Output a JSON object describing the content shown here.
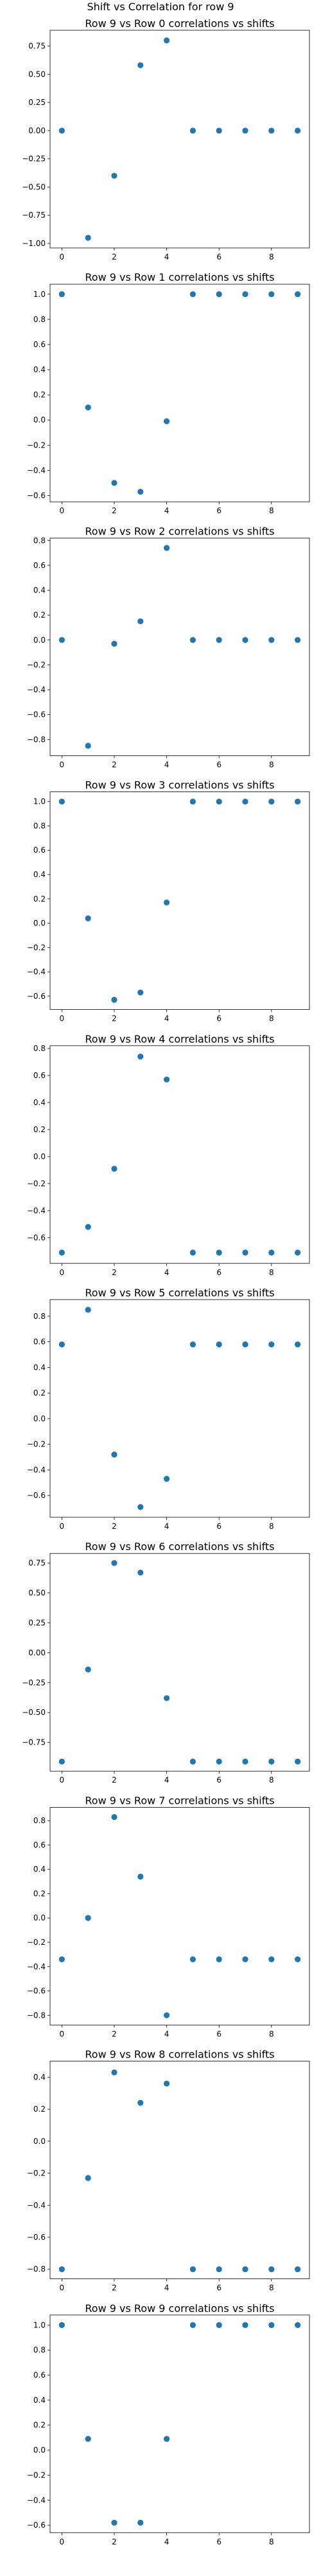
{
  "figure": {
    "suptitle": "Shift vs Correlation for row 9"
  },
  "marker_color": "#1f77b4",
  "chart_data": [
    {
      "type": "scatter",
      "title": "Row 9 vs Row 0 correlations vs shifts",
      "x": [
        0,
        1,
        2,
        3,
        4,
        5,
        6,
        7,
        8,
        9
      ],
      "y": [
        0.0,
        -0.95,
        -0.4,
        0.58,
        0.8,
        0.0,
        0.0,
        0.0,
        0.0,
        0.0
      ],
      "xlim": [
        -0.45,
        9.45
      ],
      "ylim": [
        -1.04,
        0.89
      ],
      "xticks": [
        0,
        2,
        4,
        6,
        8
      ],
      "yticks": [
        -1.0,
        -0.75,
        -0.5,
        -0.25,
        0.0,
        0.25,
        0.5,
        0.75
      ],
      "ytick_labels": [
        "−1.00",
        "−0.75",
        "−0.50",
        "−0.25",
        "0.00",
        "0.25",
        "0.50",
        "0.75"
      ]
    },
    {
      "type": "scatter",
      "title": "Row 9 vs Row 1 correlations vs shifts",
      "x": [
        0,
        1,
        2,
        3,
        4,
        5,
        6,
        7,
        8,
        9
      ],
      "y": [
        1.0,
        0.1,
        -0.5,
        -0.57,
        -0.01,
        1.0,
        1.0,
        1.0,
        1.0,
        1.0
      ],
      "xlim": [
        -0.45,
        9.45
      ],
      "ylim": [
        -0.65,
        1.08
      ],
      "xticks": [
        0,
        2,
        4,
        6,
        8
      ],
      "yticks": [
        -0.6,
        -0.4,
        -0.2,
        0.0,
        0.2,
        0.4,
        0.6,
        0.8,
        1.0
      ],
      "ytick_labels": [
        "−0.6",
        "−0.4",
        "−0.2",
        "0.0",
        "0.2",
        "0.4",
        "0.6",
        "0.8",
        "1.0"
      ]
    },
    {
      "type": "scatter",
      "title": "Row 9 vs Row 2 correlations vs shifts",
      "x": [
        0,
        1,
        2,
        3,
        4,
        5,
        6,
        7,
        8,
        9
      ],
      "y": [
        0.0,
        -0.85,
        -0.03,
        0.15,
        0.74,
        0.0,
        0.0,
        0.0,
        0.0,
        0.0
      ],
      "xlim": [
        -0.45,
        9.45
      ],
      "ylim": [
        -0.93,
        0.82
      ],
      "xticks": [
        0,
        2,
        4,
        6,
        8
      ],
      "yticks": [
        -0.8,
        -0.6,
        -0.4,
        -0.2,
        0.0,
        0.2,
        0.4,
        0.6,
        0.8
      ],
      "ytick_labels": [
        "−0.8",
        "−0.6",
        "−0.4",
        "−0.2",
        "0.0",
        "0.2",
        "0.4",
        "0.6",
        "0.8"
      ]
    },
    {
      "type": "scatter",
      "title": "Row 9 vs Row 3 correlations vs shifts",
      "x": [
        0,
        1,
        2,
        3,
        4,
        5,
        6,
        7,
        8,
        9
      ],
      "y": [
        1.0,
        0.04,
        -0.63,
        -0.57,
        0.17,
        1.0,
        1.0,
        1.0,
        1.0,
        1.0
      ],
      "xlim": [
        -0.45,
        9.45
      ],
      "ylim": [
        -0.71,
        1.08
      ],
      "xticks": [
        0,
        2,
        4,
        6,
        8
      ],
      "yticks": [
        -0.6,
        -0.4,
        -0.2,
        0.0,
        0.2,
        0.4,
        0.6,
        0.8,
        1.0
      ],
      "ytick_labels": [
        "−0.6",
        "−0.4",
        "−0.2",
        "0.0",
        "0.2",
        "0.4",
        "0.6",
        "0.8",
        "1.0"
      ]
    },
    {
      "type": "scatter",
      "title": "Row 9 vs Row 4 correlations vs shifts",
      "x": [
        0,
        1,
        2,
        3,
        4,
        5,
        6,
        7,
        8,
        9
      ],
      "y": [
        -0.71,
        -0.52,
        -0.09,
        0.74,
        0.57,
        -0.71,
        -0.71,
        -0.71,
        -0.71,
        -0.71
      ],
      "xlim": [
        -0.45,
        9.45
      ],
      "ylim": [
        -0.79,
        0.82
      ],
      "xticks": [
        0,
        2,
        4,
        6,
        8
      ],
      "yticks": [
        -0.6,
        -0.4,
        -0.2,
        0.0,
        0.2,
        0.4,
        0.6,
        0.8
      ],
      "ytick_labels": [
        "−0.6",
        "−0.4",
        "−0.2",
        "0.0",
        "0.2",
        "0.4",
        "0.6",
        "0.8"
      ]
    },
    {
      "type": "scatter",
      "title": "Row 9 vs Row 5 correlations vs shifts",
      "x": [
        0,
        1,
        2,
        3,
        4,
        5,
        6,
        7,
        8,
        9
      ],
      "y": [
        0.58,
        0.85,
        -0.28,
        -0.69,
        -0.47,
        0.58,
        0.58,
        0.58,
        0.58,
        0.58
      ],
      "xlim": [
        -0.45,
        9.45
      ],
      "ylim": [
        -0.77,
        0.93
      ],
      "xticks": [
        0,
        2,
        4,
        6,
        8
      ],
      "yticks": [
        -0.6,
        -0.4,
        -0.2,
        0.0,
        0.2,
        0.4,
        0.6,
        0.8
      ],
      "ytick_labels": [
        "−0.6",
        "−0.4",
        "−0.2",
        "0.0",
        "0.2",
        "0.4",
        "0.6",
        "0.8"
      ]
    },
    {
      "type": "scatter",
      "title": "Row 9 vs Row 6 correlations vs shifts",
      "x": [
        0,
        1,
        2,
        3,
        4,
        5,
        6,
        7,
        8,
        9
      ],
      "y": [
        -0.91,
        -0.14,
        0.75,
        0.67,
        -0.38,
        -0.91,
        -0.91,
        -0.91,
        -0.91,
        -0.91
      ],
      "xlim": [
        -0.45,
        9.45
      ],
      "ylim": [
        -0.99,
        0.83
      ],
      "xticks": [
        0,
        2,
        4,
        6,
        8
      ],
      "yticks": [
        -0.75,
        -0.5,
        -0.25,
        0.0,
        0.25,
        0.5,
        0.75
      ],
      "ytick_labels": [
        "−0.75",
        "−0.50",
        "−0.25",
        "0.00",
        "0.25",
        "0.50",
        "0.75"
      ]
    },
    {
      "type": "scatter",
      "title": "Row 9 vs Row 7 correlations vs shifts",
      "x": [
        0,
        1,
        2,
        3,
        4,
        5,
        6,
        7,
        8,
        9
      ],
      "y": [
        -0.34,
        0.0,
        0.83,
        0.34,
        -0.8,
        -0.34,
        -0.34,
        -0.34,
        -0.34,
        -0.34
      ],
      "xlim": [
        -0.45,
        9.45
      ],
      "ylim": [
        -0.88,
        0.91
      ],
      "xticks": [
        0,
        2,
        4,
        6,
        8
      ],
      "yticks": [
        -0.8,
        -0.6,
        -0.4,
        -0.2,
        0.0,
        0.2,
        0.4,
        0.6,
        0.8
      ],
      "ytick_labels": [
        "−0.8",
        "−0.6",
        "−0.4",
        "−0.2",
        "0.0",
        "0.2",
        "0.4",
        "0.6",
        "0.8"
      ]
    },
    {
      "type": "scatter",
      "title": "Row 9 vs Row 8 correlations vs shifts",
      "x": [
        0,
        1,
        2,
        3,
        4,
        5,
        6,
        7,
        8,
        9
      ],
      "y": [
        -0.8,
        -0.23,
        0.43,
        0.24,
        0.36,
        -0.8,
        -0.8,
        -0.8,
        -0.8,
        -0.8
      ],
      "xlim": [
        -0.45,
        9.45
      ],
      "ylim": [
        -0.86,
        0.5
      ],
      "xticks": [
        0,
        2,
        4,
        6,
        8
      ],
      "yticks": [
        -0.8,
        -0.6,
        -0.4,
        -0.2,
        0.0,
        0.2,
        0.4
      ],
      "ytick_labels": [
        "−0.8",
        "−0.6",
        "−0.4",
        "−0.2",
        "0.0",
        "0.2",
        "0.4"
      ]
    },
    {
      "type": "scatter",
      "title": "Row 9 vs Row 9 correlations vs shifts",
      "x": [
        0,
        1,
        2,
        3,
        4,
        5,
        6,
        7,
        8,
        9
      ],
      "y": [
        1.0,
        0.09,
        -0.58,
        -0.58,
        0.09,
        1.0,
        1.0,
        1.0,
        1.0,
        1.0
      ],
      "xlim": [
        -0.45,
        9.45
      ],
      "ylim": [
        -0.66,
        1.08
      ],
      "xticks": [
        0,
        2,
        4,
        6,
        8
      ],
      "yticks": [
        -0.6,
        -0.4,
        -0.2,
        0.0,
        0.2,
        0.4,
        0.6,
        0.8,
        1.0
      ],
      "ytick_labels": [
        "−0.6",
        "−0.4",
        "−0.2",
        "0.0",
        "0.2",
        "0.4",
        "0.6",
        "0.8",
        "1.0"
      ]
    }
  ]
}
